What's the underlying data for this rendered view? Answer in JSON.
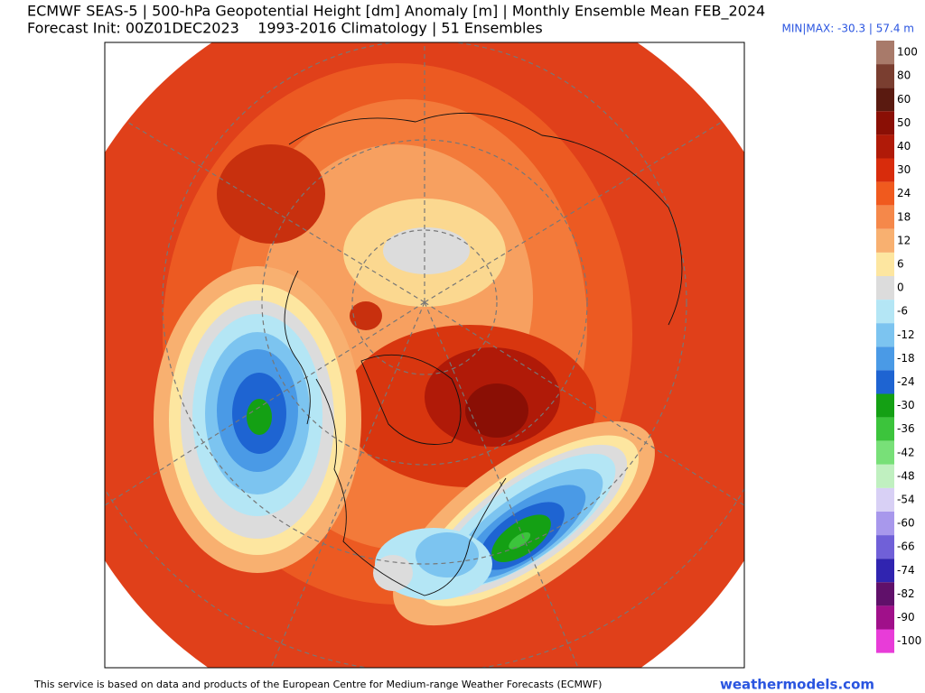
{
  "header": {
    "title": "ECMWF SEAS-5 | 500-hPa Geopotential Height [dm] Anomaly [m] | Monthly Ensemble Mean FEB_2024",
    "subtitle": "Forecast Init: 00Z01DEC2023    1993-2016 Climatology | 51 Ensembles",
    "minmax": "MIN|MAX: -30.3 | 57.4 m"
  },
  "colorbar": {
    "levels": [
      100,
      80,
      60,
      50,
      40,
      30,
      24,
      18,
      12,
      6,
      0,
      -6,
      -12,
      -18,
      -24,
      -30,
      -36,
      -42,
      -48,
      -54,
      -60,
      -66,
      -74,
      -82,
      -90,
      -100
    ],
    "colors": [
      "#a87a6a",
      "#7a3e30",
      "#5a1a10",
      "#8a0f05",
      "#b01a08",
      "#d82c0c",
      "#f05a1e",
      "#f5884a",
      "#f8b070",
      "#fde6a0",
      "#dcdcdc",
      "#b4e6f5",
      "#7cc4f0",
      "#4a9ae6",
      "#1e64d2",
      "#14a014",
      "#3cc43c",
      "#78e078",
      "#c0f0c0",
      "#d8d0f5",
      "#a898ec",
      "#7060d8",
      "#3024b0",
      "#60106a",
      "#a0108a",
      "#e83cd8"
    ]
  },
  "footer": {
    "credit": "This service is based on data and products of the European Centre for Medium-range Weather Forecasts (ECMWF)",
    "site": "weathermodels.com"
  }
}
